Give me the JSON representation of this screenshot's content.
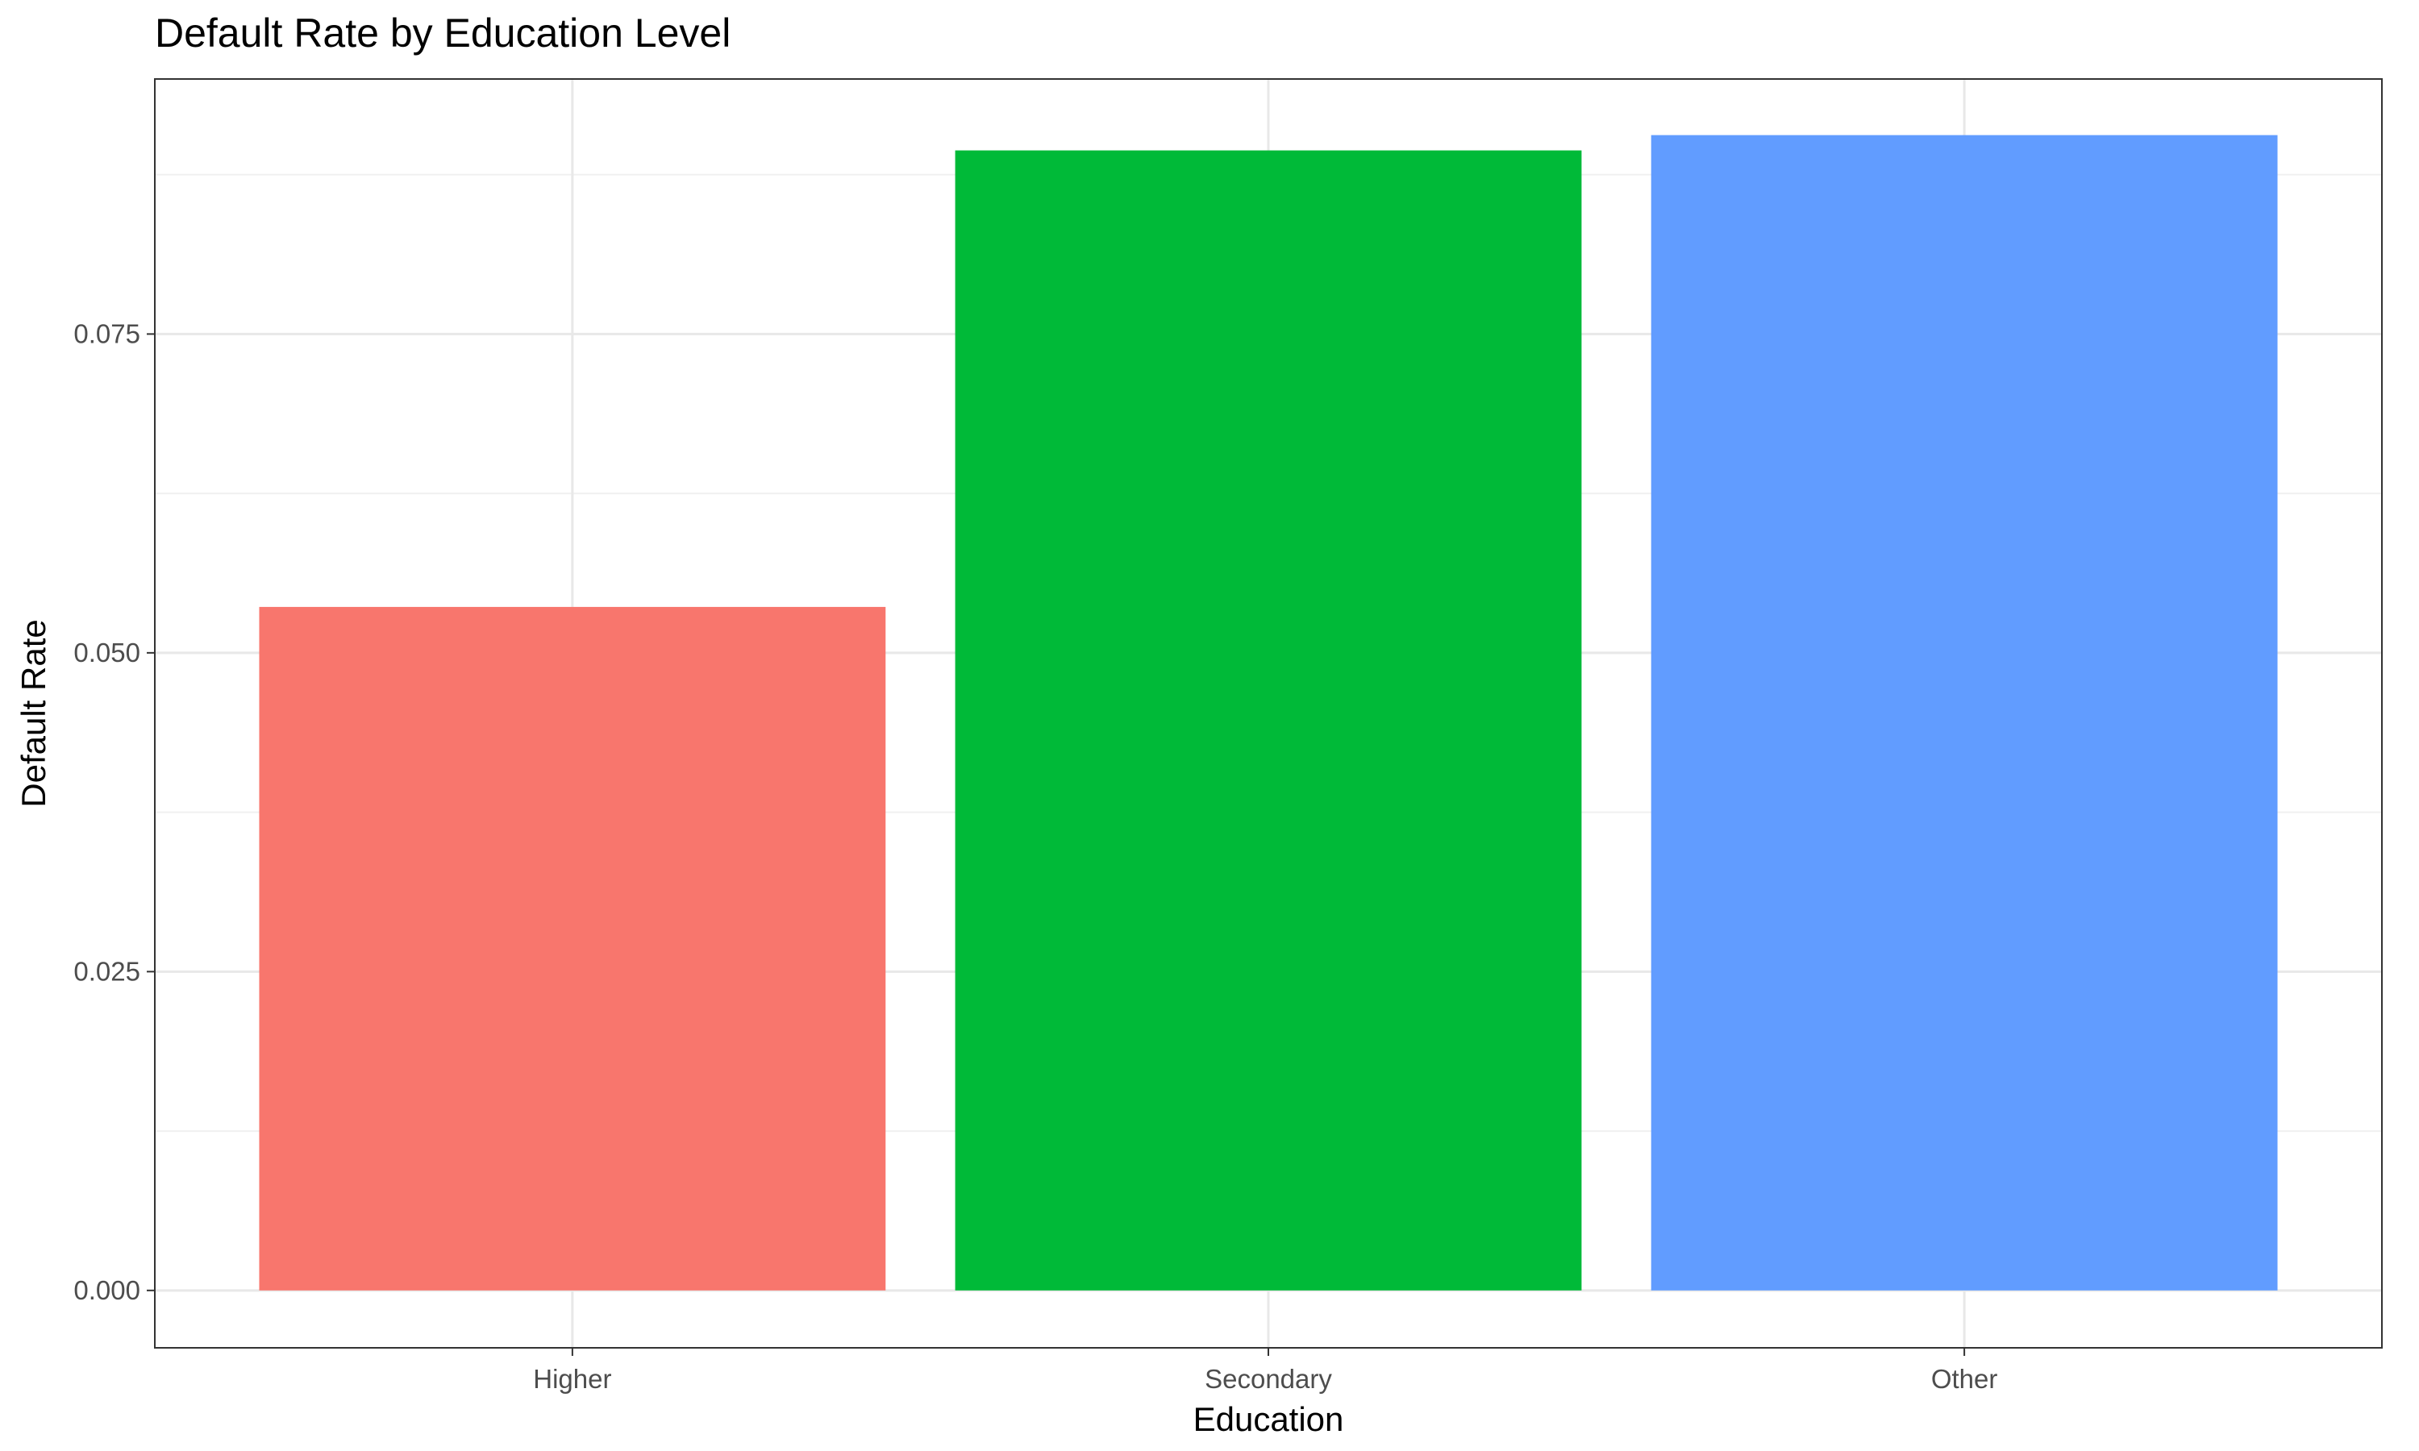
{
  "chart_data": {
    "type": "bar",
    "title": "Default Rate by Education Level",
    "xlabel": "Education",
    "ylabel": "Default Rate",
    "categories": [
      "Higher",
      "Secondary",
      "Other"
    ],
    "values": [
      0.0536,
      0.0894,
      0.0906
    ],
    "colors": [
      "#F8766D",
      "#00BA38",
      "#619CFF"
    ],
    "ylim": [
      -0.0045,
      0.095
    ],
    "yticks": [
      0.0,
      0.025,
      0.05,
      0.075
    ],
    "ytick_labels": [
      "0.000",
      "0.025",
      "0.050",
      "0.075"
    ],
    "grid": true,
    "legend": "none",
    "panel_border": true
  }
}
